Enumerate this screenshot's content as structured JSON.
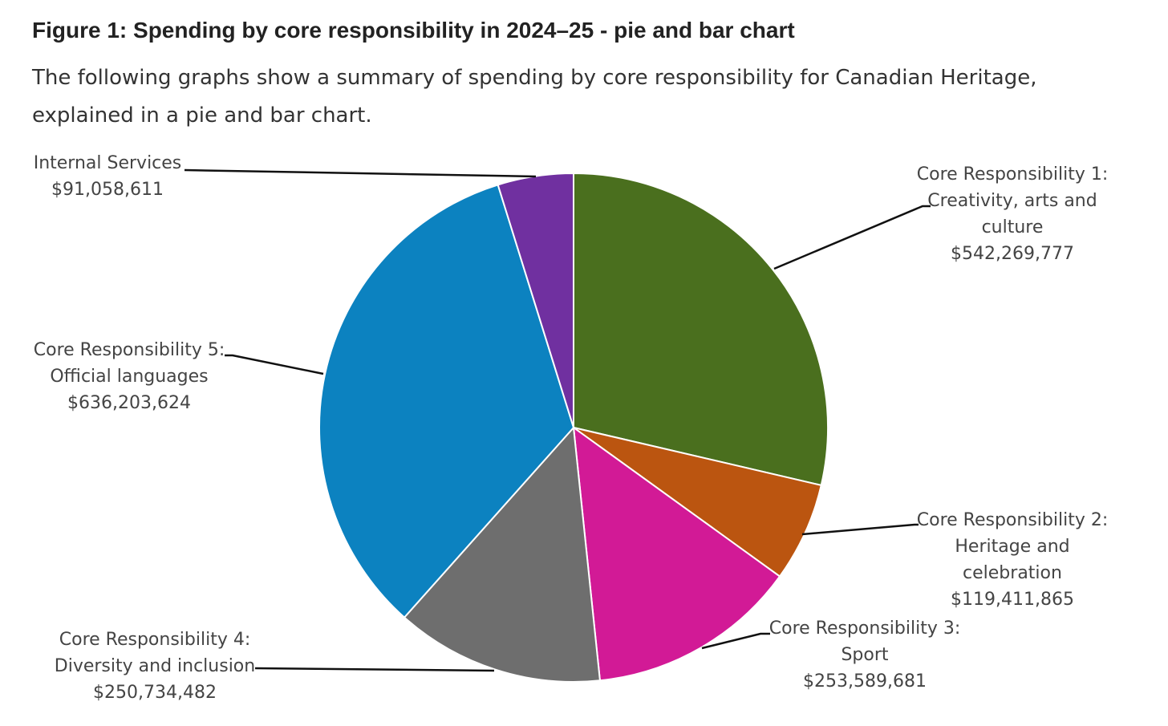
{
  "figure": {
    "title": "Figure 1: Spending by core responsibility in 2024–25 - pie and bar chart",
    "description": "The following graphs show a summary of spending by core responsibility for Canadian Heritage, explained in a pie and bar chart."
  },
  "chart_data": {
    "type": "pie",
    "title": "",
    "start_angle_deg": 0,
    "direction": "clockwise",
    "legend": "none",
    "slices": [
      {
        "key": "cr1",
        "label_lines": [
          "Core Responsibility 1:",
          "Creativity, arts and",
          "culture"
        ],
        "value": 542269777,
        "value_label": "$542,269,777",
        "color": "#4a6f1e"
      },
      {
        "key": "cr2",
        "label_lines": [
          "Core Responsibility 2:",
          "Heritage and",
          "celebration"
        ],
        "value": 119411865,
        "value_label": "$119,411,865",
        "color": "#bb5510"
      },
      {
        "key": "cr3",
        "label_lines": [
          "Core Responsibility 3:",
          "Sport"
        ],
        "value": 253589681,
        "value_label": "$253,589,681",
        "color": "#d21a96"
      },
      {
        "key": "cr4",
        "label_lines": [
          "Core Responsibility 4:",
          "Diversity and inclusion"
        ],
        "value": 250734482,
        "value_label": "$250,734,482",
        "color": "#6e6e6e"
      },
      {
        "key": "cr5",
        "label_lines": [
          "Core Responsibility 5:",
          "Official languages"
        ],
        "value": 636203624,
        "value_label": "$636,203,624",
        "color": "#0c82c0"
      },
      {
        "key": "internal",
        "label_lines": [
          "Internal Services"
        ],
        "value": 91058611,
        "value_label": "$91,058,611",
        "color": "#7030a0"
      }
    ]
  }
}
